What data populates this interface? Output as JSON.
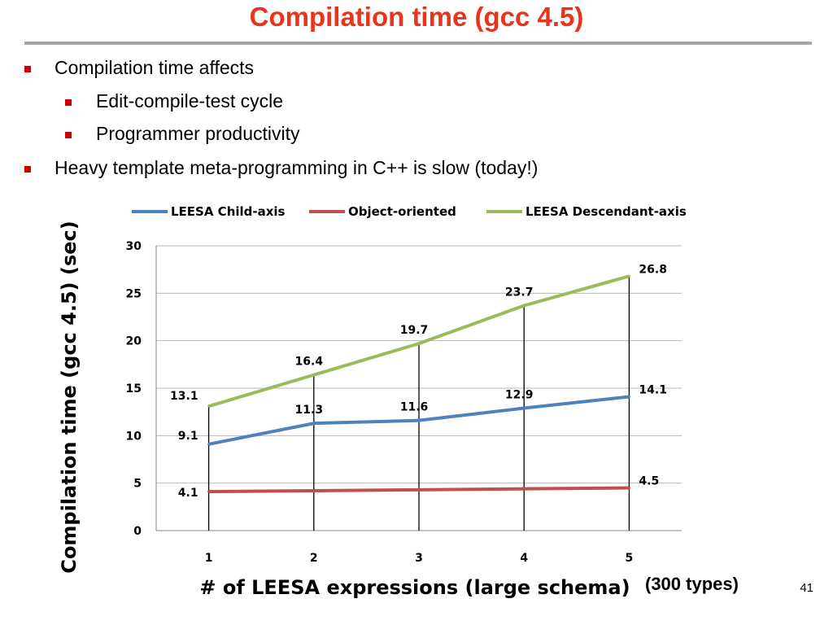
{
  "slide": {
    "title": "Compilation time (gcc 4.5)",
    "slide_number": "41",
    "note": "(300 types)",
    "bullets": [
      {
        "level": 1,
        "text": "Compilation time affects"
      },
      {
        "level": 2,
        "text": "Edit-compile-test cycle"
      },
      {
        "level": 2,
        "text": "Programmer productivity"
      },
      {
        "level": 1,
        "text": "Heavy template meta-programming in C++ is slow (today!)"
      }
    ],
    "colors": {
      "title": "#e8341c",
      "bullet_mark": "#cc0000",
      "rule": "#a6a6a6"
    }
  },
  "chart_data": {
    "type": "line",
    "title": "",
    "xlabel": "# of LEESA expressions (large schema)",
    "ylabel": "Compilation time (gcc 4.5) (sec)",
    "categories": [
      "1",
      "2",
      "3",
      "4",
      "5"
    ],
    "ylim": [
      0,
      30
    ],
    "yticks": [
      "0",
      "5",
      "10",
      "15",
      "20",
      "25",
      "30"
    ],
    "grid": true,
    "drop_lines": true,
    "legend_position": "top",
    "series": [
      {
        "name": "LEESA Child-axis",
        "color": "#4f81bd",
        "values": [
          9.1,
          11.3,
          11.6,
          12.9,
          14.1
        ],
        "labels": [
          "9.1",
          "11.3",
          "11.6",
          "12.9",
          "14.1"
        ]
      },
      {
        "name": "Object-oriented",
        "color": "#c0504d",
        "values": [
          4.1,
          4.2,
          4.3,
          4.4,
          4.5
        ],
        "labels": [
          "4.1",
          "",
          "",
          "",
          "4.5"
        ]
      },
      {
        "name": "LEESA Descendant-axis",
        "color": "#9bbb59",
        "values": [
          13.1,
          16.4,
          19.7,
          23.7,
          26.8
        ],
        "labels": [
          "13.1",
          "16.4",
          "19.7",
          "23.7",
          "26.8"
        ]
      }
    ]
  }
}
